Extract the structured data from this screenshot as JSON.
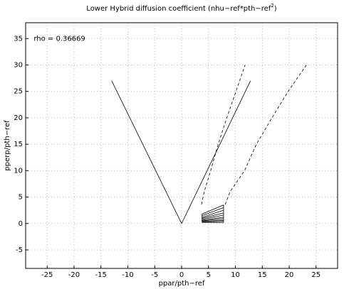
{
  "chart_data": {
    "type": "line",
    "title": {
      "text": "Lower Hybrid diffusion coefficient (nhu−ref*pth−ref",
      "superscript": "2",
      "close": ")"
    },
    "xlabel": "ppar/pth−ref",
    "ylabel": "pperp/pth−ref",
    "annotation": {
      "text": "rho = 0.36669",
      "x": -27.5,
      "y": 35
    },
    "xlim": [
      -29,
      29
    ],
    "ylim": [
      -8.5,
      38
    ],
    "xticks": [
      -25,
      -20,
      -15,
      -10,
      -5,
      0,
      5,
      10,
      15,
      20,
      25
    ],
    "yticks": [
      -5,
      0,
      5,
      10,
      15,
      20,
      25,
      30,
      35
    ],
    "grid": true,
    "series": [
      {
        "color": "#000",
        "dash": false,
        "x": [
          -13,
          0,
          12.8
        ],
        "y": [
          27,
          0,
          27
        ]
      },
      {
        "color": "#000",
        "dash": true,
        "x": [
          3.7,
          4.2,
          5.4,
          6.8,
          8.4,
          10.1,
          11.8
        ],
        "y": [
          3.6,
          6,
          10,
          15,
          20,
          25,
          30
        ]
      },
      {
        "color": "#000",
        "dash": true,
        "x": [
          8.1,
          9,
          11.7,
          13.9,
          16.8,
          19.8,
          23.2
        ],
        "y": [
          3.6,
          6,
          10,
          15,
          20,
          25,
          30
        ]
      },
      {
        "color": "#000",
        "dash": false,
        "x": [
          3.8,
          7.8,
          7.8
        ],
        "y": [
          1.8,
          3.5,
          0.2
        ]
      },
      {
        "color": "#000",
        "dash": false,
        "x": [
          3.8,
          7.8
        ],
        "y": [
          1.5,
          3
        ]
      },
      {
        "color": "#000",
        "dash": false,
        "x": [
          3.8,
          7.8
        ],
        "y": [
          1.2,
          2.5
        ]
      },
      {
        "color": "#000",
        "dash": false,
        "x": [
          3.8,
          7.8
        ],
        "y": [
          1,
          2
        ]
      },
      {
        "color": "#000",
        "dash": false,
        "x": [
          3.8,
          7.8
        ],
        "y": [
          0.8,
          1.6
        ]
      },
      {
        "color": "#000",
        "dash": false,
        "x": [
          3.8,
          7.8
        ],
        "y": [
          0.6,
          1.2
        ]
      },
      {
        "color": "#000",
        "dash": false,
        "x": [
          3.8,
          7.8
        ],
        "y": [
          0.5,
          0.9
        ]
      },
      {
        "color": "#000",
        "dash": false,
        "x": [
          3.8,
          7.8
        ],
        "y": [
          0.4,
          0.6
        ]
      },
      {
        "color": "#000",
        "dash": false,
        "x": [
          3.8,
          7.8
        ],
        "y": [
          0.3,
          0.4
        ]
      },
      {
        "color": "#000",
        "dash": false,
        "x": [
          3.8,
          7.8
        ],
        "y": [
          0.2,
          0.2
        ]
      },
      {
        "color": "#000",
        "dash": false,
        "x": [
          3.8,
          3.8
        ],
        "y": [
          0.2,
          1.8
        ]
      }
    ]
  }
}
